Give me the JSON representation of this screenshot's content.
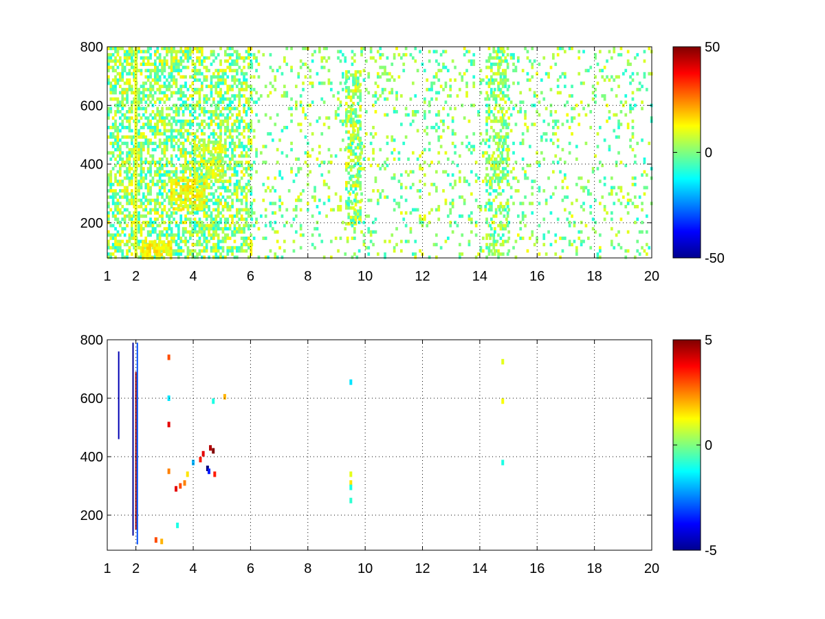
{
  "chart_data": [
    {
      "type": "heatmap",
      "title": "",
      "xlabel": "",
      "ylabel": "",
      "xlim": [
        1,
        20
      ],
      "ylim": [
        80,
        800
      ],
      "xticks": [
        1,
        2,
        4,
        6,
        8,
        10,
        12,
        14,
        16,
        18,
        20
      ],
      "xtick_labels": [
        "1",
        "2",
        "4",
        "6",
        "8",
        "10",
        "12",
        "14",
        "16",
        "18",
        "20"
      ],
      "yticks": [
        200,
        400,
        600,
        800
      ],
      "ytick_labels": [
        "200",
        "400",
        "600",
        "800"
      ],
      "grid": "dotted",
      "colormap": "jet",
      "clim": [
        -50,
        50
      ],
      "colorbar_ticks": [
        -50,
        0,
        50
      ],
      "colorbar_labels": [
        "-50",
        "0",
        "50"
      ],
      "note_values": "sparse mostly-near-zero field; dense vertical streaks near x=1-6, clusters near (3.5,300),(4.5,400),(2.7,110), bands near x=9.5 and x=14.5",
      "clusters": [
        {
          "x": [
            1.0,
            6.0
          ],
          "y": [
            80,
            800
          ],
          "density": 0.55,
          "v": [
            -12,
            15
          ]
        },
        {
          "x": [
            3.2,
            4.4
          ],
          "y": [
            250,
            350
          ],
          "density": 0.7,
          "v": [
            5,
            18
          ]
        },
        {
          "x": [
            4.0,
            5.0
          ],
          "y": [
            350,
            480
          ],
          "density": 0.6,
          "v": [
            0,
            15
          ]
        },
        {
          "x": [
            2.2,
            3.2
          ],
          "y": [
            85,
            140
          ],
          "density": 0.8,
          "v": [
            8,
            18
          ]
        },
        {
          "x": [
            9.3,
            9.8
          ],
          "y": [
            200,
            720
          ],
          "density": 0.6,
          "v": [
            -10,
            15
          ]
        },
        {
          "x": [
            14.2,
            15.0
          ],
          "y": [
            80,
            800
          ],
          "density": 0.45,
          "v": [
            -10,
            12
          ]
        },
        {
          "x": [
            6.0,
            20.0
          ],
          "y": [
            80,
            800
          ],
          "density": 0.13,
          "v": [
            -10,
            12
          ]
        }
      ],
      "vertical_lines": [
        {
          "x": 1.95,
          "y": [
            80,
            800
          ],
          "v": 12
        },
        {
          "x": 2.0,
          "y": [
            80,
            800
          ],
          "v": 8
        }
      ]
    },
    {
      "type": "heatmap",
      "title": "",
      "xlabel": "",
      "ylabel": "",
      "xlim": [
        1,
        20
      ],
      "ylim": [
        80,
        800
      ],
      "xticks": [
        1,
        2,
        4,
        6,
        8,
        10,
        12,
        14,
        16,
        18,
        20
      ],
      "xtick_labels": [
        "1",
        "2",
        "4",
        "6",
        "8",
        "10",
        "12",
        "14",
        "16",
        "18",
        "20"
      ],
      "yticks": [
        200,
        400,
        600,
        800
      ],
      "ytick_labels": [
        "200",
        "400",
        "600",
        "800"
      ],
      "grid": "dotted",
      "colormap": "jet",
      "clim": [
        -5,
        5
      ],
      "colorbar_ticks": [
        -5,
        0,
        5
      ],
      "colorbar_labels": [
        "-5",
        "0",
        "5"
      ],
      "points": [
        {
          "x": 1.4,
          "y": [
            460,
            760
          ],
          "v": -4.5
        },
        {
          "x": 1.9,
          "y": [
            130,
            790
          ],
          "v": -4.8
        },
        {
          "x": 2.0,
          "y": [
            150,
            690
          ],
          "v": 4.6
        },
        {
          "x": 2.05,
          "y": [
            100,
            790
          ],
          "v": -3.0
        },
        {
          "x": 3.15,
          "y": 740,
          "v": 3.0
        },
        {
          "x": 3.15,
          "y": 600,
          "v": -1.5
        },
        {
          "x": 3.15,
          "y": 510,
          "v": 4.0
        },
        {
          "x": 3.15,
          "y": 350,
          "v": 2.5
        },
        {
          "x": 2.7,
          "y": 115,
          "v": 3.0
        },
        {
          "x": 2.9,
          "y": 110,
          "v": 2.0
        },
        {
          "x": 3.4,
          "y": 290,
          "v": 4.0
        },
        {
          "x": 3.55,
          "y": 300,
          "v": 3.0
        },
        {
          "x": 3.7,
          "y": 310,
          "v": 2.5
        },
        {
          "x": 3.8,
          "y": 340,
          "v": 1.5
        },
        {
          "x": 4.0,
          "y": 380,
          "v": -2.0
        },
        {
          "x": 4.25,
          "y": 390,
          "v": 3.5
        },
        {
          "x": 4.35,
          "y": 410,
          "v": 4.0
        },
        {
          "x": 4.5,
          "y": 360,
          "v": -5.0
        },
        {
          "x": 4.55,
          "y": 350,
          "v": -3.5
        },
        {
          "x": 4.6,
          "y": 430,
          "v": 4.5
        },
        {
          "x": 4.7,
          "y": 420,
          "v": 5.0
        },
        {
          "x": 4.75,
          "y": 340,
          "v": 3.5
        },
        {
          "x": 4.7,
          "y": 590,
          "v": -1.0
        },
        {
          "x": 5.1,
          "y": 605,
          "v": 2.0
        },
        {
          "x": 3.45,
          "y": 165,
          "v": -1.0
        },
        {
          "x": 9.5,
          "y": 655,
          "v": -1.5
        },
        {
          "x": 9.5,
          "y": 340,
          "v": 1.0
        },
        {
          "x": 9.5,
          "y": 310,
          "v": 1.5
        },
        {
          "x": 9.5,
          "y": 295,
          "v": -1.0
        },
        {
          "x": 9.5,
          "y": 250,
          "v": -0.8
        },
        {
          "x": 14.8,
          "y": 725,
          "v": 1.0
        },
        {
          "x": 14.8,
          "y": 590,
          "v": 1.2
        },
        {
          "x": 14.8,
          "y": 380,
          "v": -1.0
        }
      ]
    }
  ]
}
